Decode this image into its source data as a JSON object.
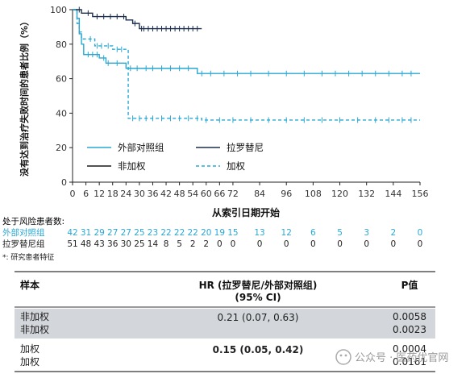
{
  "chart_data": {
    "type": "line",
    "subtype": "kaplan-meier",
    "ylabel": "没有达到治疗失败时间的患者比例（%）",
    "xlabel": "从索引日期开始",
    "xlim": [
      0,
      156
    ],
    "ylim": [
      0,
      100
    ],
    "x_ticks": [
      "0",
      "6",
      "12",
      "18",
      "24",
      "30",
      "36",
      "42",
      "48",
      "54",
      "60",
      "66",
      "72",
      "84",
      "96",
      "108",
      "120",
      "132",
      "144",
      "156"
    ],
    "y_ticks": [
      "0",
      "20",
      "40",
      "60",
      "80",
      "100"
    ],
    "grid": false,
    "legend_position": "center-left",
    "series": [
      {
        "name": "外部对照组",
        "color": "#2aa8d4",
        "dash": "solid",
        "x": [
          0,
          2,
          3,
          4,
          5,
          6,
          12,
          15,
          18,
          22,
          24,
          30,
          54,
          56,
          156
        ],
        "y": [
          100,
          95,
          86,
          80,
          74,
          74,
          72,
          69,
          69,
          69,
          66,
          66,
          66,
          63,
          63
        ]
      },
      {
        "name": "拉罗替尼",
        "color": "#1b2d4a",
        "dash": "solid",
        "x": [
          0,
          2,
          4,
          6,
          9,
          12,
          18,
          24,
          27,
          30,
          36,
          48,
          58
        ],
        "y": [
          100,
          100,
          98,
          98,
          96,
          96,
          96,
          94,
          92,
          89,
          89,
          89,
          89
        ]
      },
      {
        "name": "非加权",
        "color": "#1a1a1a",
        "dash": "solid",
        "x": [],
        "y": []
      },
      {
        "name": "加权",
        "color": "#2aa8d4",
        "dash": "dashed",
        "x": [
          0,
          2,
          3,
          4,
          6,
          10,
          14,
          18,
          24,
          25,
          54,
          58,
          156
        ],
        "y": [
          100,
          92,
          87,
          83,
          83,
          79,
          79,
          77,
          77,
          37,
          37,
          36,
          36
        ]
      }
    ],
    "risk_table": {
      "title": "处于风险患者数:",
      "rows": [
        {
          "label": "外部对照组",
          "color": "#2aa8d4",
          "values": [
            "42",
            "31",
            "29",
            "27",
            "27",
            "25",
            "23",
            "22",
            "22",
            "22",
            "20",
            "19",
            "15",
            "13",
            "12",
            "6",
            "5",
            "3",
            "2",
            "0"
          ]
        },
        {
          "label": "拉罗替尼组",
          "color": "#222222",
          "values": [
            "51",
            "48",
            "43",
            "36",
            "30",
            "25",
            "14",
            "8",
            "5",
            "2",
            "2",
            "0",
            "0",
            "0",
            "0",
            "0",
            "0",
            "0",
            "0",
            "0"
          ]
        }
      ]
    },
    "footnote": "*: 研究患者特征"
  },
  "results_table": {
    "headers": {
      "col1": "样本",
      "col2_line1": "HR (拉罗替尼/外部对照组)",
      "col2_line2": "(95% CI)",
      "col3": "P值"
    },
    "rows": [
      {
        "labels": [
          "非加权",
          "非加权"
        ],
        "hr": "0.21 (0.07, 0.63)",
        "p": [
          "0.0058",
          "0.0023"
        ],
        "shaded": true,
        "bold": false
      },
      {
        "labels": [
          "加权",
          "加权"
        ],
        "hr": "0.15 (0.05, 0.42)",
        "p": [
          "0.0004",
          "0.0161"
        ],
        "shaded": false,
        "bold": true
      }
    ]
  },
  "watermark": {
    "text": "公众号 · 医药优官网"
  }
}
